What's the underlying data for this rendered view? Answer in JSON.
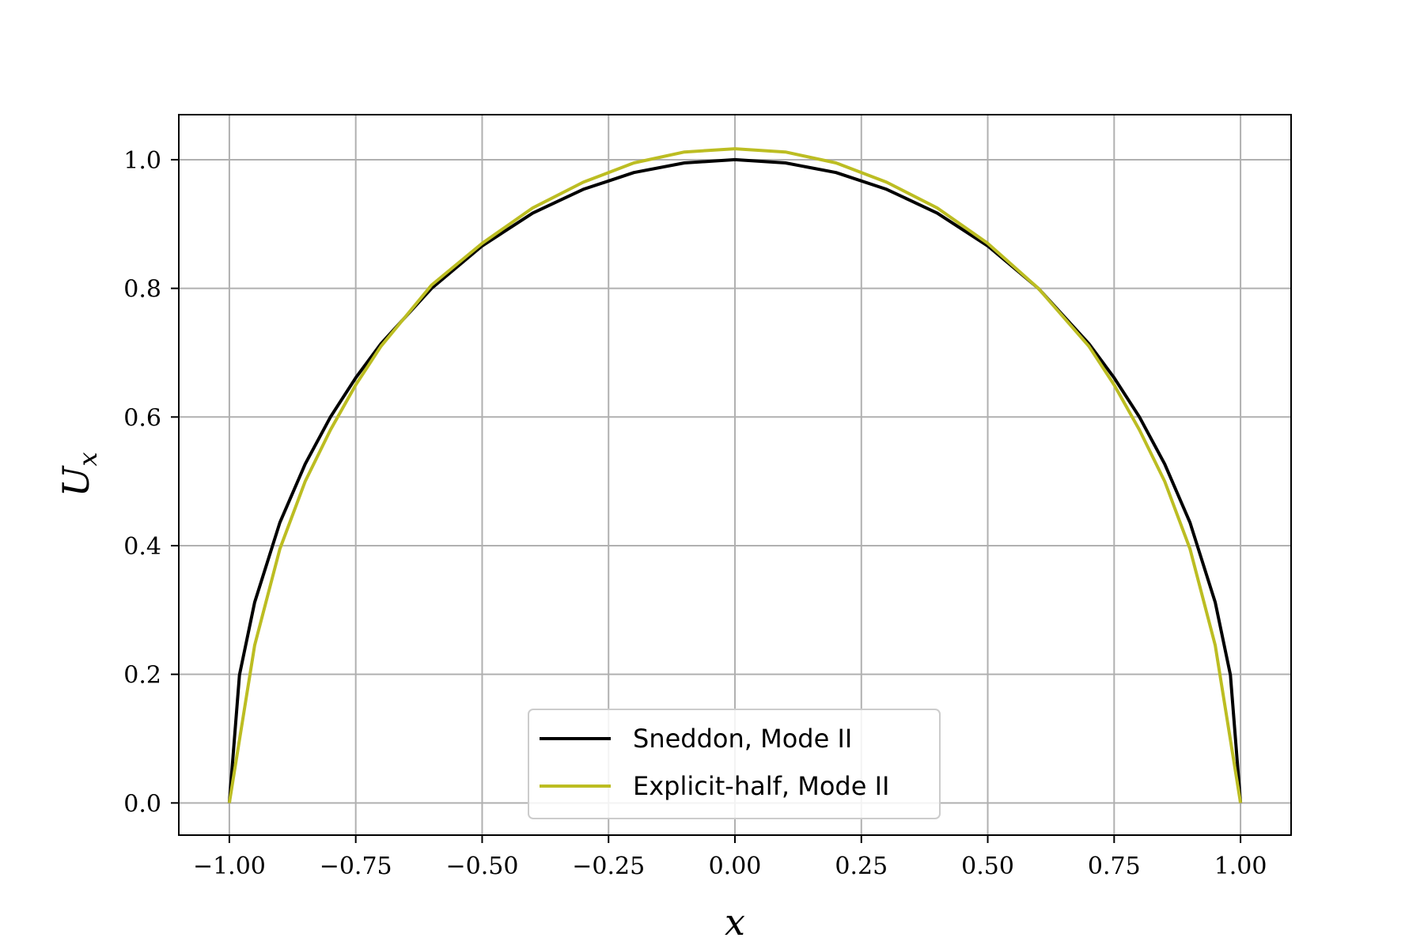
{
  "chart_data": {
    "type": "line",
    "title": "",
    "xlabel": "x",
    "ylabel": "U_x",
    "xlim": [
      -1.1,
      1.1
    ],
    "ylim": [
      -0.05,
      1.07
    ],
    "xticks": [
      -1.0,
      -0.75,
      -0.5,
      -0.25,
      0.0,
      0.25,
      0.5,
      0.75,
      1.0
    ],
    "yticks": [
      0.0,
      0.2,
      0.4,
      0.6,
      0.8,
      1.0
    ],
    "xtick_labels": [
      "−1.00",
      "−0.75",
      "−0.50",
      "−0.25",
      "0.00",
      "0.25",
      "0.50",
      "0.75",
      "1.00"
    ],
    "ytick_labels": [
      "0.0",
      "0.2",
      "0.4",
      "0.6",
      "0.8",
      "1.0"
    ],
    "grid": true,
    "legend_position": "lower-center",
    "series": [
      {
        "name": "Sneddon, Mode II",
        "color": "#000000",
        "x": [
          -1.0,
          -0.98,
          -0.95,
          -0.9,
          -0.85,
          -0.8,
          -0.75,
          -0.7,
          -0.6,
          -0.5,
          -0.4,
          -0.3,
          -0.2,
          -0.1,
          0.0,
          0.1,
          0.2,
          0.3,
          0.4,
          0.5,
          0.6,
          0.7,
          0.75,
          0.8,
          0.85,
          0.9,
          0.95,
          0.98,
          1.0
        ],
        "y": [
          0.0,
          0.199,
          0.312,
          0.436,
          0.527,
          0.6,
          0.661,
          0.714,
          0.8,
          0.866,
          0.917,
          0.954,
          0.98,
          0.995,
          1.0,
          0.995,
          0.98,
          0.954,
          0.917,
          0.866,
          0.8,
          0.714,
          0.661,
          0.6,
          0.527,
          0.436,
          0.312,
          0.199,
          0.0
        ]
      },
      {
        "name": "Explicit-half, Mode II",
        "color": "#bcbd22",
        "x": [
          -1.0,
          -0.95,
          -0.9,
          -0.85,
          -0.8,
          -0.75,
          -0.7,
          -0.6,
          -0.5,
          -0.4,
          -0.3,
          -0.2,
          -0.1,
          0.0,
          0.1,
          0.2,
          0.3,
          0.4,
          0.5,
          0.6,
          0.7,
          0.75,
          0.8,
          0.85,
          0.9,
          0.95,
          1.0
        ],
        "y": [
          0.0,
          0.245,
          0.395,
          0.5,
          0.58,
          0.65,
          0.71,
          0.805,
          0.87,
          0.925,
          0.965,
          0.995,
          1.012,
          1.017,
          1.012,
          0.995,
          0.965,
          0.925,
          0.87,
          0.8,
          0.71,
          0.65,
          0.58,
          0.5,
          0.395,
          0.245,
          0.0
        ]
      }
    ]
  }
}
